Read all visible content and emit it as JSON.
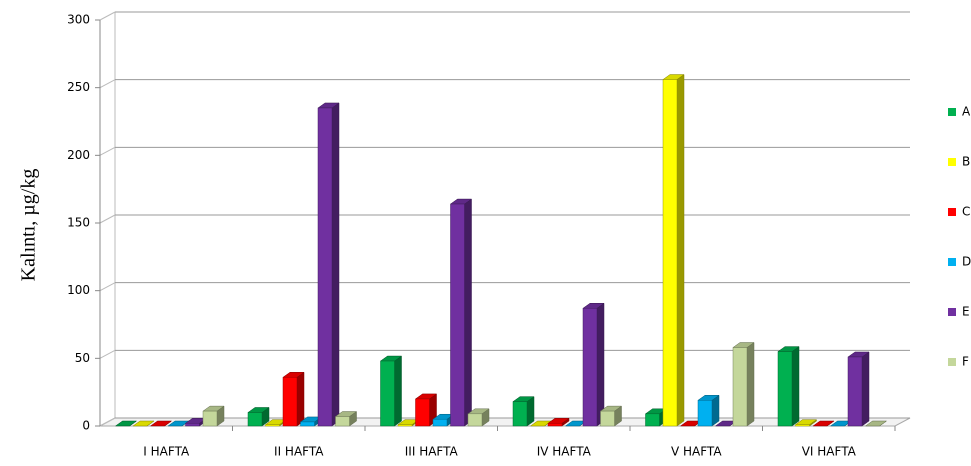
{
  "chart_data": {
    "type": "bar3d",
    "y_label": "Kalıntı, µg/kg",
    "categories": [
      "I HAFTA",
      "II HAFTA",
      "III HAFTA",
      "IV HAFTA",
      "V HAFTA",
      "VI HAFTA"
    ],
    "series": [
      {
        "name": "A",
        "color": "#00b050",
        "values": [
          0,
          10,
          48,
          18,
          9,
          55
        ]
      },
      {
        "name": "B",
        "color": "#ffff00",
        "values": [
          0,
          1,
          1,
          0,
          256,
          1
        ]
      },
      {
        "name": "C",
        "color": "#ff0000",
        "values": [
          0,
          36,
          20,
          2,
          0,
          0
        ]
      },
      {
        "name": "D",
        "color": "#00b0f0",
        "values": [
          0,
          3,
          5,
          0,
          19,
          0
        ]
      },
      {
        "name": "E",
        "color": "#7030a0",
        "values": [
          2,
          235,
          164,
          87,
          0,
          51
        ]
      },
      {
        "name": "F",
        "color": "#c4d79b",
        "values": [
          11,
          7,
          9,
          11,
          58,
          0
        ]
      }
    ],
    "ylim": [
      0,
      300
    ],
    "yticks": [
      0,
      50,
      100,
      150,
      200,
      250,
      300
    ],
    "grid": true,
    "legend": "right"
  }
}
